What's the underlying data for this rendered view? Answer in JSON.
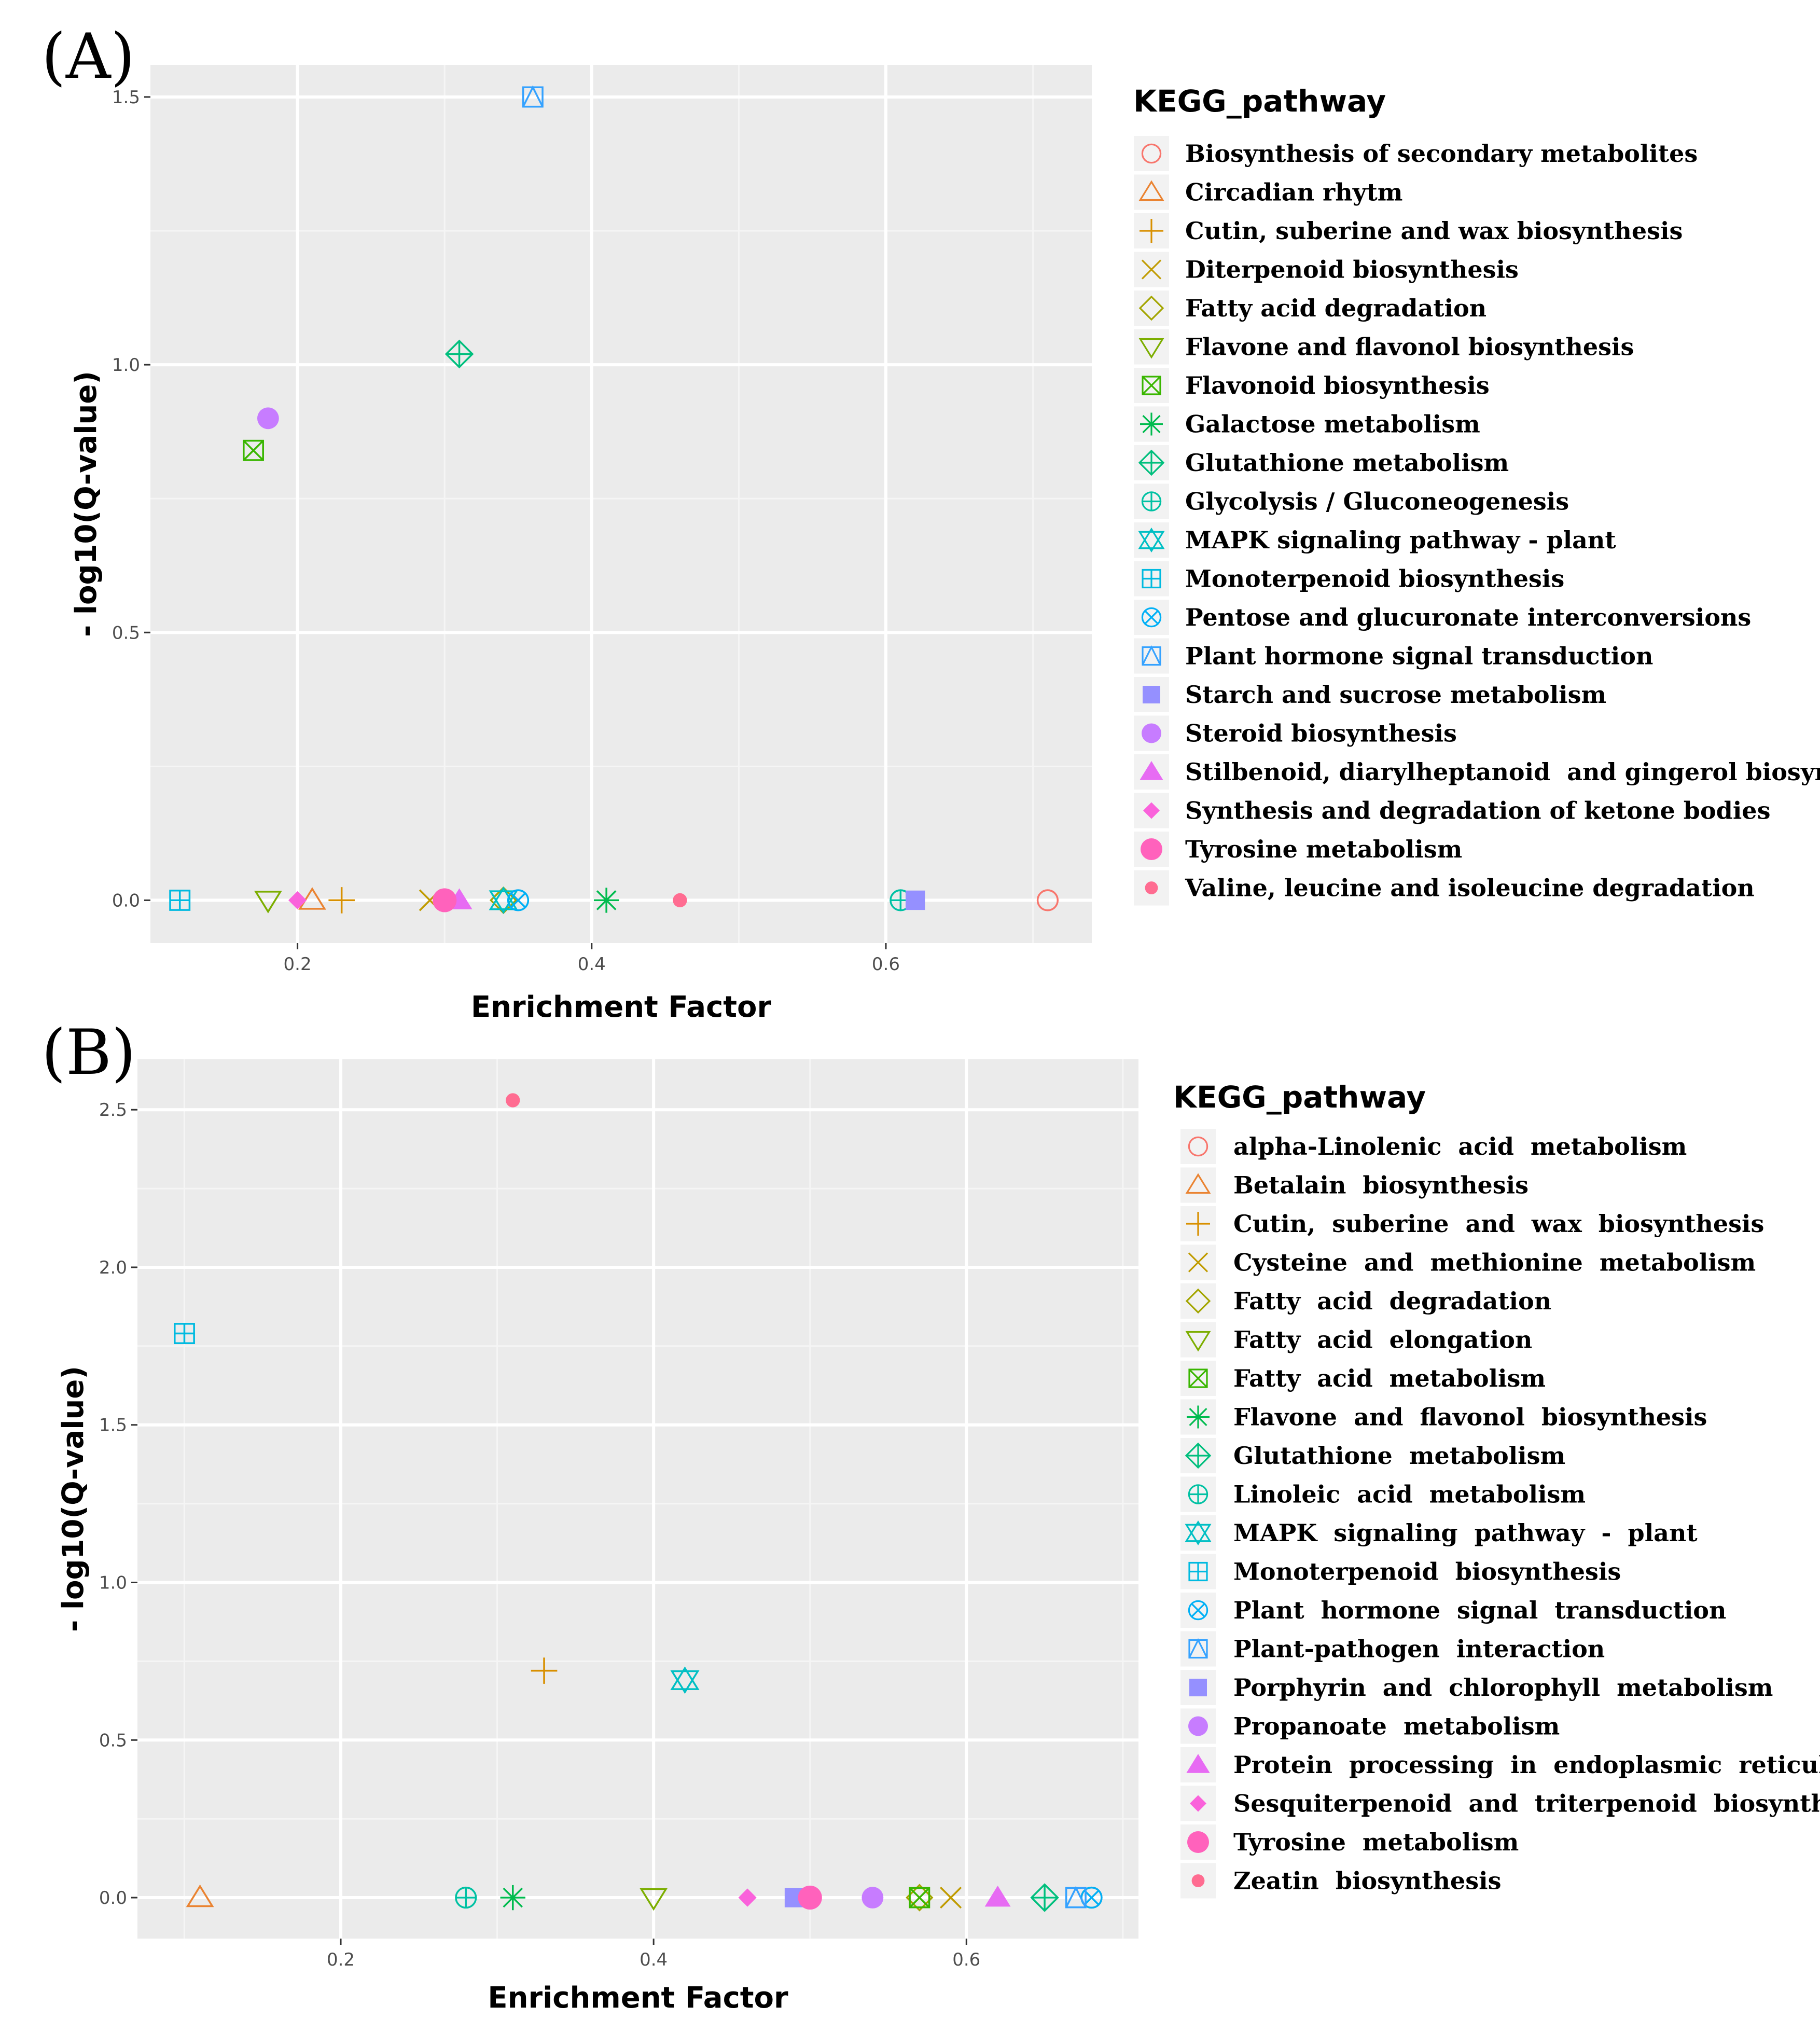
{
  "chart_data": [
    {
      "panel_label": "(A)",
      "type": "scatter",
      "xlabel": "Enrichment Factor",
      "ylabel": "- log10(Q-value)",
      "xlim": [
        0.1,
        0.74
      ],
      "ylim": [
        -0.08,
        1.56
      ],
      "xticks": [
        0.2,
        0.4,
        0.6
      ],
      "xtick_labels": [
        "0.2",
        "0.4",
        "0.6"
      ],
      "yticks": [
        0.0,
        0.5,
        1.0,
        1.5
      ],
      "ytick_labels": [
        "0.0",
        "0.5",
        "1.0",
        "1.5"
      ],
      "legend_title": "KEGG_pathway",
      "legend_position": "right",
      "grid": true,
      "series": [
        {
          "name": "Biosynthesis of secondary metabolites",
          "shape": "circle-open",
          "color": "#F8766D",
          "x": 0.71,
          "y": 0.0
        },
        {
          "name": "Circadian rhytm",
          "shape": "triangle-open",
          "color": "#EA8331",
          "x": 0.21,
          "y": 0.0
        },
        {
          "name": "Cutin, suberine and wax biosynthesis",
          "shape": "plus",
          "color": "#D89000",
          "x": 0.23,
          "y": 0.0
        },
        {
          "name": "Diterpenoid biosynthesis",
          "shape": "cross",
          "color": "#C09B00",
          "x": 0.29,
          "y": 0.0
        },
        {
          "name": "Fatty acid degradation",
          "shape": "diamond-open",
          "color": "#A3A500",
          "x": 0.34,
          "y": 0.0
        },
        {
          "name": "Flavone and flavonol biosynthesis",
          "shape": "triangle-down-open",
          "color": "#7CAE00",
          "x": 0.18,
          "y": 0.0
        },
        {
          "name": "Flavonoid biosynthesis",
          "shape": "square-cross",
          "color": "#39B600",
          "x": 0.17,
          "y": 0.84
        },
        {
          "name": "Galactose metabolism",
          "shape": "asterisk",
          "color": "#00BB4E",
          "x": 0.41,
          "y": 0.0
        },
        {
          "name": "Glutathione metabolism",
          "shape": "diamond-plus",
          "color": "#00BF7D",
          "x": 0.31,
          "y": 1.02
        },
        {
          "name": "Glycolysis / Gluconeogenesis",
          "shape": "circle-plus",
          "color": "#00C1A3",
          "x": 0.61,
          "y": 0.0
        },
        {
          "name": "MAPK signaling pathway - plant",
          "shape": "star-david",
          "color": "#00BFC4",
          "x": 0.34,
          "y": 0.0
        },
        {
          "name": "Monoterpenoid biosynthesis",
          "shape": "square-plus",
          "color": "#00BAE0",
          "x": 0.12,
          "y": 0.0
        },
        {
          "name": "Pentose and glucuronate interconversions",
          "shape": "circle-cross",
          "color": "#00B0F6",
          "x": 0.35,
          "y": 0.0
        },
        {
          "name": "Plant hormone signal transduction",
          "shape": "square-triangle",
          "color": "#35A2FF",
          "x": 0.36,
          "y": 1.5
        },
        {
          "name": "Starch and sucrose metabolism",
          "shape": "square-filled",
          "color": "#9590FF",
          "x": 0.62,
          "y": 0.0
        },
        {
          "name": "Steroid biosynthesis",
          "shape": "circle-filled",
          "color": "#C77CFF",
          "x": 0.18,
          "y": 0.9
        },
        {
          "name": "Stilbenoid, diarylheptanoid  and gingerol biosynthesis",
          "shape": "triangle-filled",
          "color": "#E76BF3",
          "x": 0.31,
          "y": 0.0
        },
        {
          "name": "Synthesis and degradation of ketone bodies",
          "shape": "diamond-filled",
          "color": "#FA62DB",
          "x": 0.2,
          "y": 0.0
        },
        {
          "name": "Tyrosine metabolism",
          "shape": "circle-large",
          "color": "#FF62BC",
          "x": 0.3,
          "y": 0.0
        },
        {
          "name": "Valine, leucine and isoleucine degradation",
          "shape": "circle-small",
          "color": "#FF6C91",
          "x": 0.46,
          "y": 0.0
        }
      ]
    },
    {
      "panel_label": "(B)",
      "type": "scatter",
      "xlabel": "Enrichment Factor",
      "ylabel": "- log10(Q-value)",
      "xlim": [
        0.07,
        0.71
      ],
      "ylim": [
        -0.13,
        2.66
      ],
      "xticks": [
        0.2,
        0.4,
        0.6
      ],
      "xtick_labels": [
        "0.2",
        "0.4",
        "0.6"
      ],
      "yticks": [
        0.0,
        0.5,
        1.0,
        1.5,
        2.0,
        2.5
      ],
      "ytick_labels": [
        "0.0",
        "0.5",
        "1.0",
        "1.5",
        "2.0",
        "2.5"
      ],
      "legend_title": "KEGG_pathway",
      "legend_position": "right",
      "grid": true,
      "series": [
        {
          "name": "alpha-Linolenic  acid  metabolism",
          "shape": "circle-open",
          "color": "#F8766D",
          "x": 0.68,
          "y": 0.0
        },
        {
          "name": "Betalain  biosynthesis",
          "shape": "triangle-open",
          "color": "#EA8331",
          "x": 0.11,
          "y": 0.0
        },
        {
          "name": "Cutin,  suberine  and  wax  biosynthesis",
          "shape": "plus",
          "color": "#D89000",
          "x": 0.33,
          "y": 0.72
        },
        {
          "name": "Cysteine  and  methionine  metabolism",
          "shape": "cross",
          "color": "#C09B00",
          "x": 0.59,
          "y": 0.0
        },
        {
          "name": "Fatty  acid  degradation",
          "shape": "diamond-open",
          "color": "#A3A500",
          "x": 0.57,
          "y": 0.0
        },
        {
          "name": "Fatty  acid  elongation",
          "shape": "triangle-down-open",
          "color": "#7CAE00",
          "x": 0.4,
          "y": 0.0
        },
        {
          "name": "Fatty  acid  metabolism",
          "shape": "square-cross",
          "color": "#39B600",
          "x": 0.57,
          "y": 0.0
        },
        {
          "name": "Flavone  and  flavonol  biosynthesis",
          "shape": "asterisk",
          "color": "#00BB4E",
          "x": 0.31,
          "y": 0.0
        },
        {
          "name": "Glutathione  metabolism",
          "shape": "diamond-plus",
          "color": "#00BF7D",
          "x": 0.65,
          "y": 0.0
        },
        {
          "name": "Linoleic  acid  metabolism",
          "shape": "circle-plus",
          "color": "#00C1A3",
          "x": 0.28,
          "y": 0.0
        },
        {
          "name": "MAPK  signaling  pathway  -  plant",
          "shape": "star-david",
          "color": "#00BFC4",
          "x": 0.42,
          "y": 0.69
        },
        {
          "name": "Monoterpenoid  biosynthesis",
          "shape": "square-plus",
          "color": "#00BAE0",
          "x": 0.1,
          "y": 1.79
        },
        {
          "name": "Plant  hormone  signal  transduction",
          "shape": "circle-cross",
          "color": "#00B0F6",
          "x": 0.68,
          "y": 0.0
        },
        {
          "name": "Plant-pathogen  interaction",
          "shape": "square-triangle",
          "color": "#35A2FF",
          "x": 0.67,
          "y": 0.0
        },
        {
          "name": "Porphyrin  and  chlorophyll  metabolism",
          "shape": "square-filled",
          "color": "#9590FF",
          "x": 0.49,
          "y": 0.0
        },
        {
          "name": "Propanoate  metabolism",
          "shape": "circle-filled",
          "color": "#C77CFF",
          "x": 0.54,
          "y": 0.0
        },
        {
          "name": "Protein  processing  in  endoplasmic  reticulum",
          "shape": "triangle-filled",
          "color": "#E76BF3",
          "x": 0.62,
          "y": 0.0
        },
        {
          "name": "Sesquiterpenoid  and  triterpenoid  biosynthesis",
          "shape": "diamond-filled",
          "color": "#FA62DB",
          "x": 0.46,
          "y": 0.0
        },
        {
          "name": "Tyrosine  metabolism",
          "shape": "circle-large",
          "color": "#FF62BC",
          "x": 0.5,
          "y": 0.0
        },
        {
          "name": "Zeatin  biosynthesis",
          "shape": "circle-small",
          "color": "#FF6C91",
          "x": 0.31,
          "y": 2.53
        }
      ]
    }
  ]
}
